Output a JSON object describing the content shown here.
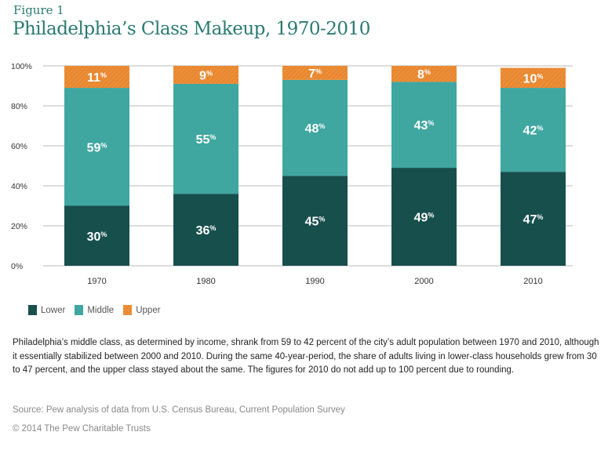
{
  "figure_label": "Figure 1",
  "chart_data": {
    "type": "bar",
    "stacked": true,
    "title": "Philadelphia’s Class Makeup, 1970-2010",
    "categories": [
      "1970",
      "1980",
      "1990",
      "2000",
      "2010"
    ],
    "series": [
      {
        "name": "Lower",
        "color": "#174f4d",
        "values": [
          30,
          36,
          45,
          49,
          47
        ]
      },
      {
        "name": "Middle",
        "color": "#3fa6a0",
        "values": [
          59,
          55,
          48,
          43,
          42
        ]
      },
      {
        "name": "Upper",
        "color": "#e8872f",
        "values": [
          11,
          9,
          7,
          8,
          10
        ]
      }
    ],
    "ylim": [
      0,
      100
    ],
    "yticks": [
      "0%",
      "20%",
      "40%",
      "60%",
      "80%",
      "100%"
    ],
    "grid": true,
    "legend_position": "bottom-left",
    "data_label_suffix": "%"
  },
  "description": "Philadelphia’s middle class, as determined by income, shrank from 59 to 42 percent of the city’s adult population between 1970 and 2010, although it essentially stabilized between 2000 and 2010.  During the same 40-year-period, the share of adults living in lower-class households grew from 30 to 47 percent, and the upper class stayed about the same. The figures for 2010 do not add up to 100 percent due to rounding.",
  "source": "Source: Pew analysis of data from U.S. Census Bureau, Current Population Survey",
  "copyright": "© 2014 The Pew Charitable Trusts"
}
